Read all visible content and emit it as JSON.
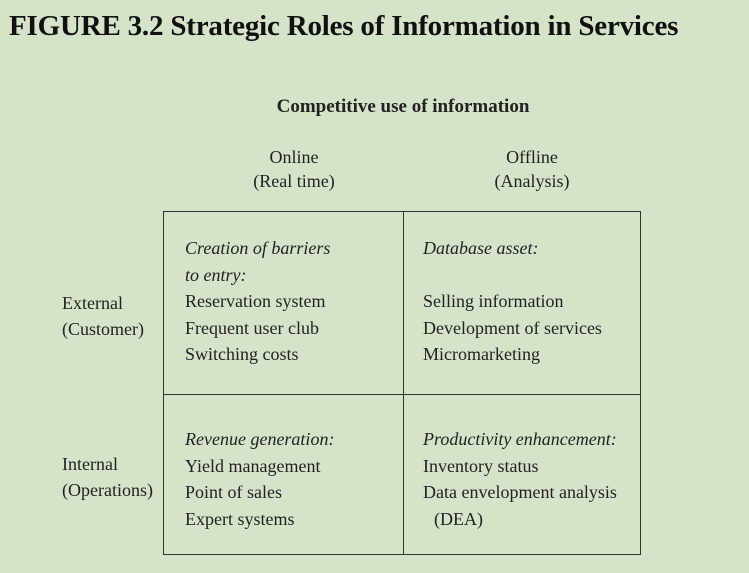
{
  "title": "FIGURE 3.2 Strategic Roles of Information in Services",
  "heading": "Competitive use of information",
  "columns": [
    {
      "line1": "Online",
      "line2": "(Real time)"
    },
    {
      "line1": "Offline",
      "line2": "(Analysis)"
    }
  ],
  "rows": [
    {
      "line1": "External",
      "line2": "(Customer)"
    },
    {
      "line1": "Internal",
      "line2": "(Operations)"
    }
  ],
  "cells": {
    "external_online": {
      "heading_line1": "Creation of barriers",
      "heading_line2": "to entry:",
      "items": [
        "Reservation system",
        "Frequent user club",
        "Switching costs"
      ]
    },
    "external_offline": {
      "heading": "Database asset:",
      "items": [
        "Selling information",
        "Development of services",
        "Micromarketing"
      ]
    },
    "internal_online": {
      "heading": "Revenue generation:",
      "items": [
        "Yield management",
        "Point of sales",
        "Expert systems"
      ]
    },
    "internal_offline": {
      "heading": "Productivity enhancement:",
      "items": [
        "Inventory status",
        "Data envelopment analysis",
        "(DEA)"
      ]
    }
  }
}
